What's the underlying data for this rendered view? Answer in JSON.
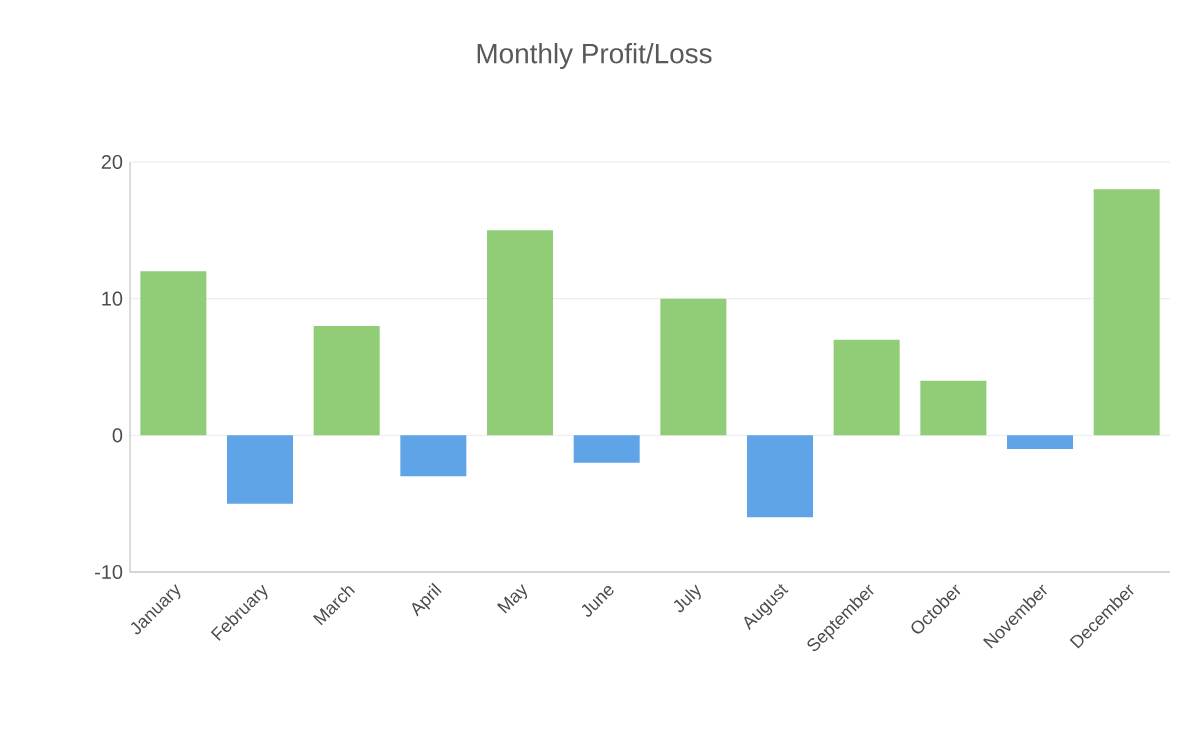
{
  "chart_data": {
    "type": "bar",
    "title": "Monthly Profit/Loss",
    "categories": [
      "January",
      "February",
      "March",
      "April",
      "May",
      "June",
      "July",
      "August",
      "September",
      "October",
      "November",
      "December"
    ],
    "values": [
      12,
      -5,
      8,
      -3,
      15,
      -2,
      10,
      -6,
      7,
      4,
      -1,
      18
    ],
    "colors": [
      "#91cd77",
      "#5ea4e6",
      "#91cd77",
      "#5ea4e6",
      "#91cd77",
      "#5ea4e6",
      "#91cd77",
      "#5ea4e6",
      "#91cd77",
      "#91cd77",
      "#5ea4e6",
      "#91cd77"
    ],
    "ylim": [
      -10,
      20
    ],
    "yticks": [
      -10,
      0,
      10,
      20
    ],
    "grid": "y"
  }
}
